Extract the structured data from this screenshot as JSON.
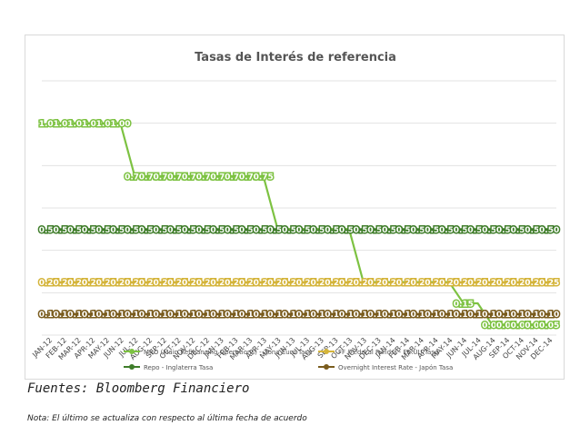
{
  "source": "Fuentes: Bloomberg Financiero",
  "note": "Nota: El último se actualiza con respecto al última fecha de acuerdo",
  "chart_data": {
    "type": "line",
    "title": "Tasas de Interés de referencia",
    "categories": [
      "JAN-12",
      "FEB-12",
      "MAR-12",
      "APR-12",
      "MAY-12",
      "JUN-12",
      "JUL-12",
      "AUG-12",
      "SEP-12",
      "OCT-12",
      "NOV-12",
      "DEC-12",
      "JAN-13",
      "FEB-13",
      "MAR-13",
      "APR-13",
      "MAY-13",
      "JUN-13",
      "JUL-13",
      "AUG-13",
      "SEP-13",
      "OCT-13",
      "NOV-13",
      "DEC-13",
      "JAN-14",
      "FEB-14",
      "MAR-14",
      "APR-14",
      "MAY-14",
      "JUN-14",
      "JUL-14",
      "AUG-14",
      "SEP-14",
      "OCT-14",
      "NOV-14",
      "DEC-14"
    ],
    "ylim": [
      0,
      1.2
    ],
    "grid": true,
    "legend_position": "bottom",
    "series": [
      {
        "name": "MRO (Main Refinancing Operations) - Zona Euro Tasa",
        "color": "#7dc242",
        "values": [
          1.0,
          1.0,
          1.0,
          1.0,
          1.0,
          1.0,
          0.75,
          0.75,
          0.75,
          0.75,
          0.75,
          0.75,
          0.75,
          0.75,
          0.75,
          0.75,
          0.5,
          0.5,
          0.5,
          0.5,
          0.5,
          0.5,
          0.25,
          0.25,
          0.25,
          0.25,
          0.25,
          0.25,
          0.25,
          0.15,
          0.15,
          0.05,
          0.05,
          0.05,
          0.05,
          0.05
        ],
        "labels": [
          "1.00",
          "1.00",
          "1.00",
          "1.00",
          "1.00",
          "1.00",
          "0.75",
          "0.75",
          "0.75",
          "0.75",
          "0.75",
          "0.75",
          "0.75",
          "0.75",
          "0.75",
          "0.75",
          "",
          "",
          "",
          "",
          "",
          "",
          "",
          "",
          "",
          "",
          "",
          "",
          "",
          "0.15",
          "",
          "0.05",
          "0.05",
          "0.05",
          "0.05",
          "0.05"
        ]
      },
      {
        "name": "FF (Federal Funds) - EE.UU Tasa",
        "color": "#d4b43a",
        "values": [
          0.25,
          0.25,
          0.25,
          0.25,
          0.25,
          0.25,
          0.25,
          0.25,
          0.25,
          0.25,
          0.25,
          0.25,
          0.25,
          0.25,
          0.25,
          0.25,
          0.25,
          0.25,
          0.25,
          0.25,
          0.25,
          0.25,
          0.25,
          0.25,
          0.25,
          0.25,
          0.25,
          0.25,
          0.25,
          0.25,
          0.25,
          0.25,
          0.25,
          0.25,
          0.25,
          0.25
        ],
        "labels": [
          "0.25",
          "0.25",
          "0.25",
          "0.25",
          "0.25",
          "0.25",
          "0.25",
          "0.25",
          "0.25",
          "0.25",
          "0.25",
          "0.25",
          "0.25",
          "0.25",
          "0.25",
          "0.25",
          "0.25",
          "0.25",
          "0.25",
          "0.25",
          "0.25",
          "0.25",
          "0.25",
          "0.25",
          "0.25",
          "0.25",
          "0.25",
          "0.25",
          "0.25",
          "0.25",
          "0.25",
          "0.25",
          "0.25",
          "0.25",
          "0.25",
          "0.25"
        ]
      },
      {
        "name": "Repo - Inglaterra Tasa",
        "color": "#3f7d2a",
        "values": [
          0.5,
          0.5,
          0.5,
          0.5,
          0.5,
          0.5,
          0.5,
          0.5,
          0.5,
          0.5,
          0.5,
          0.5,
          0.5,
          0.5,
          0.5,
          0.5,
          0.5,
          0.5,
          0.5,
          0.5,
          0.5,
          0.5,
          0.5,
          0.5,
          0.5,
          0.5,
          0.5,
          0.5,
          0.5,
          0.5,
          0.5,
          0.5,
          0.5,
          0.5,
          0.5,
          0.5
        ],
        "labels": [
          "0.50",
          "0.50",
          "0.50",
          "0.50",
          "0.50",
          "0.50",
          "0.50",
          "0.50",
          "0.50",
          "0.50",
          "0.50",
          "0.50",
          "0.50",
          "0.50",
          "0.50",
          "0.50",
          "0.50",
          "0.50",
          "0.50",
          "0.50",
          "0.50",
          "0.50",
          "0.50",
          "0.50",
          "0.50",
          "0.50",
          "0.50",
          "0.50",
          "0.50",
          "0.50",
          "0.50",
          "0.50",
          "0.50",
          "0.50",
          "0.50",
          "0.50"
        ]
      },
      {
        "name": "Overnight Interest Rate - Japón Tasa",
        "color": "#7a5c1e",
        "values": [
          0.1,
          0.1,
          0.1,
          0.1,
          0.1,
          0.1,
          0.1,
          0.1,
          0.1,
          0.1,
          0.1,
          0.1,
          0.1,
          0.1,
          0.1,
          0.1,
          0.1,
          0.1,
          0.1,
          0.1,
          0.1,
          0.1,
          0.1,
          0.1,
          0.1,
          0.1,
          0.1,
          0.1,
          0.1,
          0.1,
          0.1,
          0.1,
          0.1,
          0.1,
          0.1,
          0.1
        ],
        "labels": [
          "0.10",
          "0.10",
          "0.10",
          "0.10",
          "0.10",
          "0.10",
          "0.10",
          "0.10",
          "0.10",
          "0.10",
          "0.10",
          "0.10",
          "0.10",
          "0.10",
          "0.10",
          "0.10",
          "0.10",
          "0.10",
          "0.10",
          "0.10",
          "0.10",
          "0.10",
          "0.10",
          "0.10",
          "0.10",
          "0.10",
          "0.10",
          "0.10",
          "0.10",
          "0.10",
          "0.10",
          "0.10",
          "0.10",
          "0.10",
          "0.10",
          "0.10"
        ]
      }
    ],
    "legend_order": [
      0,
      1,
      2,
      3
    ]
  }
}
